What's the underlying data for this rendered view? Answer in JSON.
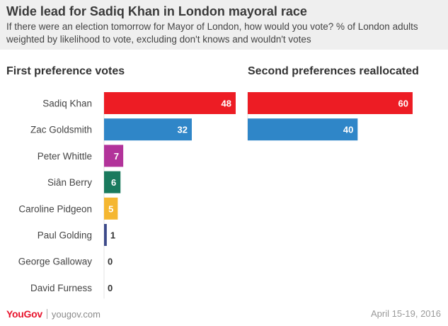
{
  "title": "Wide lead for Sadiq Khan in London mayoral race",
  "subtitle": "If there were an election tomorrow for Mayor of London, how would you vote? % of London adults weighted by likelihood to vote, excluding don't knows and wouldn't votes",
  "footer": {
    "logo_you": "You",
    "logo_gov": "Gov",
    "site": "yougov.com",
    "date": "April 15-19, 2016"
  },
  "chart_data": [
    {
      "type": "bar",
      "orientation": "horizontal",
      "title": "First preference votes",
      "categories": [
        "Sadiq Khan",
        "Zac Goldsmith",
        "Peter Whittle",
        "Siân Berry",
        "Caroline Pidgeon",
        "Paul Golding",
        "George Galloway",
        "David Furness"
      ],
      "values": [
        48,
        32,
        7,
        6,
        5,
        1,
        0,
        0
      ],
      "colors": [
        "#ed1c24",
        "#2f86c8",
        "#b2339a",
        "#1a7a5e",
        "#f5b731",
        "#3d4a8a",
        "#888888",
        "#888888"
      ],
      "xlim": [
        0,
        48
      ]
    },
    {
      "type": "bar",
      "orientation": "horizontal",
      "title": "Second preferences reallocated",
      "categories": [
        "Sadiq Khan",
        "Zac Goldsmith"
      ],
      "values": [
        60,
        40
      ],
      "colors": [
        "#ed1c24",
        "#2f86c8"
      ],
      "xlim": [
        0,
        60
      ]
    }
  ]
}
